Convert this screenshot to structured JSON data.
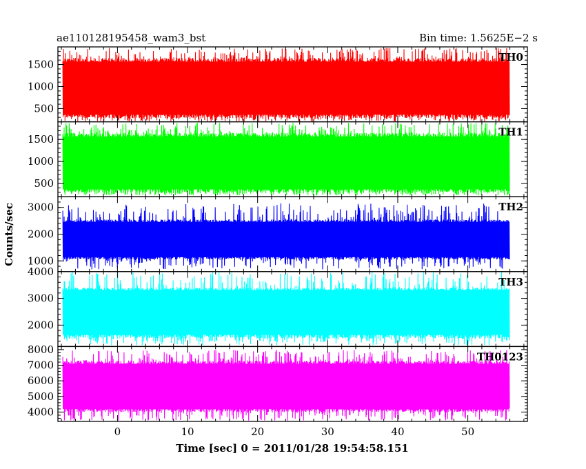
{
  "title": "ae110128195458_wam3_bst",
  "bin_time": "Bin time: 1.5625E−2 s",
  "xlabel": "Time [sec] 0 = 2011/01/28 19:54:58.151",
  "ylabel": "Counts/sec",
  "chart_data": {
    "type": "line",
    "title": "ae110128195458_wam3_bst",
    "xlabel": "Time [sec] 0 = 2011/01/28 19:54:58.151",
    "ylabel": "Counts/sec",
    "xlim": [
      -8.5,
      58.5
    ],
    "x_range": [
      -7.8,
      55.9
    ],
    "bin_time_s": 0.015625,
    "x_ticks": [
      0,
      10,
      20,
      30,
      40,
      50
    ],
    "grid": false,
    "legend": "none",
    "panels": [
      {
        "name": "TH0",
        "color": "#ff0000",
        "ylim": [
          200,
          1900
        ],
        "y_ticks": [
          500,
          1000,
          1500
        ],
        "mean": 950,
        "low_band": 280,
        "high_band": 1650,
        "min": 210,
        "max": 1880
      },
      {
        "name": "TH1",
        "color": "#00ff00",
        "ylim": [
          200,
          1900
        ],
        "y_ticks": [
          500,
          1000,
          1500
        ],
        "mean": 950,
        "low_band": 290,
        "high_band": 1650,
        "min": 230,
        "max": 1880
      },
      {
        "name": "TH2",
        "color": "#0000ff",
        "ylim": [
          600,
          3400
        ],
        "y_ticks": [
          1000,
          2000,
          3000
        ],
        "mean": 1800,
        "low_band": 1050,
        "high_band": 2550,
        "min": 680,
        "max": 3150
      },
      {
        "name": "TH3",
        "color": "#00ffff",
        "ylim": [
          1200,
          4000
        ],
        "y_ticks": [
          2000,
          3000,
          4000
        ],
        "mean": 2650,
        "low_band": 1500,
        "high_band": 3400,
        "min": 1250,
        "max": 4000
      },
      {
        "name": "TH0123",
        "color": "#ff00ff",
        "ylim": [
          3400,
          8200
        ],
        "y_ticks": [
          4000,
          5000,
          6000,
          7000,
          8000
        ],
        "mean": 5600,
        "low_band": 4000,
        "high_band": 7300,
        "min": 3450,
        "max": 8000
      }
    ]
  }
}
